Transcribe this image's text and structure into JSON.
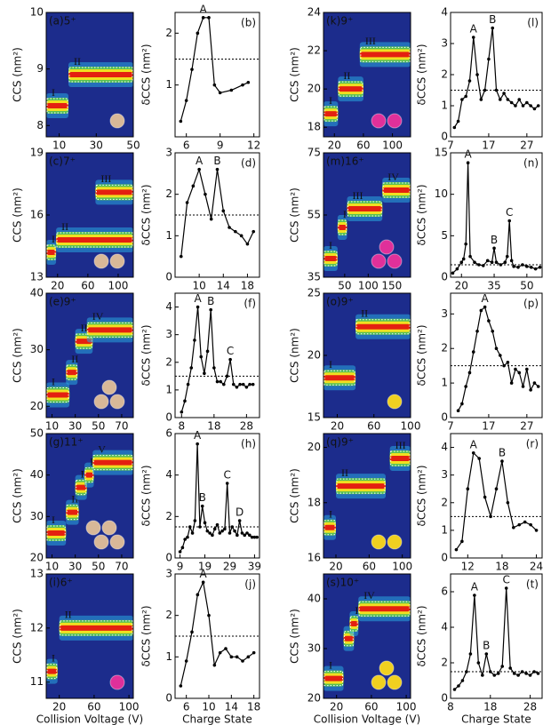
{
  "chart_data": [
    {
      "type": "ciu",
      "title": "(a)5⁺",
      "label_color": "#ffffff",
      "ylabel": "CCS (nm²)",
      "xlim": [
        3,
        50
      ],
      "xticks": [
        10,
        30,
        50
      ],
      "ylim": [
        7.8,
        10
      ],
      "yticks": [
        8,
        9,
        10
      ],
      "features": [
        {
          "label": "I",
          "x": [
            3,
            15
          ],
          "y": 8.35
        },
        {
          "label": "II",
          "x": [
            15,
            50
          ],
          "y": 8.9
        }
      ],
      "icon": {
        "color": "#d8b898",
        "count": 1
      }
    },
    {
      "type": "line",
      "title": "(b)",
      "ylabel": "δCCS (nm²)",
      "xlim": [
        5,
        12.5
      ],
      "xticks": [
        6,
        9,
        12
      ],
      "ylim": [
        0,
        2.4
      ],
      "yticks": [
        1,
        2
      ],
      "threshold": 1.5,
      "x": [
        5.5,
        6,
        6.5,
        7,
        7.5,
        8,
        8.5,
        9,
        10,
        11,
        11.5
      ],
      "values": [
        0.3,
        0.7,
        1.3,
        2.0,
        2.3,
        2.3,
        1.0,
        0.85,
        0.9,
        1.0,
        1.05
      ],
      "annotations": [
        {
          "text": "A",
          "x": 7.5
        }
      ]
    },
    {
      "type": "ciu",
      "title": "(c)7⁺",
      "label_color": "#ffffff",
      "ylabel": "CCS (nm²)",
      "xlim": [
        5,
        120
      ],
      "xticks": [
        20,
        60,
        100
      ],
      "ylim": [
        13,
        19
      ],
      "yticks": [
        13,
        16,
        19
      ],
      "features": [
        {
          "label": "I",
          "x": [
            5,
            18
          ],
          "y": 14.2
        },
        {
          "label": "II",
          "x": [
            18,
            120
          ],
          "y": 14.8
        },
        {
          "label": "III",
          "x": [
            70,
            120
          ],
          "y": 17.1
        }
      ],
      "icon": {
        "color": "#d8b898",
        "count": 2
      }
    },
    {
      "type": "line",
      "title": "(d)",
      "ylabel": "δCCS (nm²)",
      "xlim": [
        6,
        20
      ],
      "xticks": [
        10,
        14,
        18
      ],
      "ylim": [
        0,
        3
      ],
      "yticks": [
        0,
        1,
        2,
        3
      ],
      "threshold": 1.5,
      "x": [
        7,
        8,
        9,
        10,
        11,
        12,
        13,
        14,
        15,
        16,
        17,
        18,
        19
      ],
      "values": [
        0.5,
        1.8,
        2.2,
        2.6,
        2.0,
        1.4,
        2.6,
        1.6,
        1.2,
        1.1,
        1.0,
        0.8,
        1.1
      ],
      "annotations": [
        {
          "text": "A",
          "x": 10
        },
        {
          "text": "B",
          "x": 13
        }
      ]
    },
    {
      "type": "ciu",
      "title": "(e)9⁺",
      "label_color": "#ffffff",
      "ylabel": "CCS (nm²)",
      "xlim": [
        5,
        80
      ],
      "xticks": [
        10,
        30,
        50,
        70
      ],
      "ylim": [
        18,
        40
      ],
      "yticks": [
        20,
        30,
        40
      ],
      "features": [
        {
          "label": "I",
          "x": [
            5,
            25
          ],
          "y": 22
        },
        {
          "label": "II",
          "x": [
            22,
            32
          ],
          "y": 26
        },
        {
          "label": "III",
          "x": [
            30,
            45
          ],
          "y": 31.5
        },
        {
          "label": "IV",
          "x": [
            40,
            80
          ],
          "y": 33.5
        }
      ],
      "icon": {
        "color": "#d8b898",
        "count": 3
      }
    },
    {
      "type": "line",
      "title": "(f)",
      "ylabel": "δCCS (nm²)",
      "xlim": [
        6,
        32
      ],
      "xticks": [
        8,
        18,
        28
      ],
      "ylim": [
        0,
        4.5
      ],
      "yticks": [
        0,
        1,
        2,
        3,
        4
      ],
      "threshold": 1.5,
      "x": [
        8,
        9,
        10,
        11,
        12,
        13,
        14,
        15,
        16,
        17,
        18,
        19,
        20,
        21,
        22,
        23,
        24,
        25,
        26,
        27,
        28,
        29,
        30
      ],
      "values": [
        0.2,
        0.6,
        1.2,
        1.8,
        2.8,
        4.0,
        2.2,
        1.6,
        2.4,
        3.9,
        1.8,
        1.3,
        1.3,
        1.2,
        1.5,
        2.1,
        1.2,
        1.1,
        1.2,
        1.2,
        1.1,
        1.2,
        1.2
      ],
      "annotations": [
        {
          "text": "A",
          "x": 13
        },
        {
          "text": "B",
          "x": 17
        },
        {
          "text": "C",
          "x": 23
        }
      ]
    },
    {
      "type": "ciu",
      "title": "(g)11⁺",
      "label_color": "#ffffff",
      "ylabel": "CCS (nm²)",
      "xlim": [
        5,
        80
      ],
      "xticks": [
        10,
        30,
        50,
        70
      ],
      "ylim": [
        20,
        50
      ],
      "yticks": [
        20,
        30,
        40,
        50
      ],
      "features": [
        {
          "label": "I",
          "x": [
            5,
            22
          ],
          "y": 26
        },
        {
          "label": "II",
          "x": [
            22,
            33
          ],
          "y": 31
        },
        {
          "label": "III",
          "x": [
            30,
            40
          ],
          "y": 37
        },
        {
          "label": "IV",
          "x": [
            38,
            46
          ],
          "y": 40
        },
        {
          "label": "V",
          "x": [
            45,
            80
          ],
          "y": 43
        }
      ],
      "icon": {
        "color": "#d8b898",
        "count": 4
      }
    },
    {
      "type": "line",
      "title": "(h)",
      "ylabel": "δCCS (nm²)",
      "xlim": [
        7,
        41
      ],
      "xticks": [
        9,
        19,
        29,
        39
      ],
      "ylim": [
        0,
        6
      ],
      "yticks": [
        0,
        2,
        4,
        6
      ],
      "threshold": 1.5,
      "x": [
        9,
        10,
        11,
        12,
        13,
        14,
        15,
        16,
        17,
        18,
        19,
        20,
        21,
        22,
        23,
        24,
        25,
        26,
        27,
        28,
        29,
        30,
        31,
        32,
        33,
        34,
        35,
        36,
        37,
        38,
        39,
        40
      ],
      "values": [
        0.3,
        0.5,
        0.9,
        1.0,
        1.5,
        1.2,
        1.8,
        5.5,
        1.5,
        2.5,
        1.7,
        1.3,
        1.2,
        1.1,
        1.4,
        1.6,
        1.2,
        1.3,
        1.4,
        3.6,
        1.2,
        1.5,
        1.3,
        1.1,
        1.8,
        1.2,
        1.1,
        1.2,
        1.1,
        1.0,
        1.0,
        1.0
      ],
      "annotations": [
        {
          "text": "A",
          "x": 16
        },
        {
          "text": "B",
          "x": 18
        },
        {
          "text": "C",
          "x": 28
        },
        {
          "text": "D",
          "x": 33
        }
      ]
    },
    {
      "type": "ciu",
      "title": "(i)6⁺",
      "label_color": "#e0309a",
      "ylabel": "CCS (nm²)",
      "xlabel": "Collision Voltage (V)",
      "xlim": [
        5,
        105
      ],
      "xticks": [
        20,
        60,
        100
      ],
      "ylim": [
        10.7,
        13
      ],
      "yticks": [
        11,
        12,
        13
      ],
      "features": [
        {
          "label": "I",
          "x": [
            5,
            18
          ],
          "y": 11.2
        },
        {
          "label": "II",
          "x": [
            20,
            105
          ],
          "y": 12
        }
      ],
      "icon": {
        "color": "#e0309a",
        "count": 1
      }
    },
    {
      "type": "line",
      "title": "(j)",
      "ylabel": "δCCS (nm²)",
      "xlabel": "Charge State",
      "xlim": [
        4,
        19
      ],
      "xticks": [
        6,
        10,
        14,
        18
      ],
      "ylim": [
        0,
        3
      ],
      "yticks": [
        0,
        1,
        2,
        3
      ],
      "threshold": 1.5,
      "x": [
        5,
        6,
        7,
        8,
        9,
        10,
        11,
        12,
        13,
        14,
        15,
        16,
        17,
        18
      ],
      "values": [
        0.3,
        0.9,
        1.6,
        2.5,
        2.8,
        2.0,
        0.8,
        1.1,
        1.2,
        1.0,
        1.0,
        0.9,
        1.0,
        1.1
      ],
      "annotations": [
        {
          "text": "A",
          "x": 9
        }
      ]
    },
    {
      "type": "ciu",
      "title": "(k)9⁺",
      "label_color": "#e0309a",
      "ylabel": "CCS (nm²)",
      "xlim": [
        5,
        125
      ],
      "xticks": [
        20,
        60,
        100
      ],
      "ylim": [
        17.5,
        24
      ],
      "yticks": [
        18,
        20,
        22,
        24
      ],
      "features": [
        {
          "label": "I",
          "x": [
            5,
            25
          ],
          "y": 18.7
        },
        {
          "label": "II",
          "x": [
            25,
            60
          ],
          "y": 20
        },
        {
          "label": "III",
          "x": [
            55,
            125
          ],
          "y": 21.8
        }
      ],
      "icon": {
        "color": "#e0309a",
        "count": 2
      }
    },
    {
      "type": "line",
      "title": "(l)",
      "ylabel": "δCCS (nm²)",
      "xlim": [
        7,
        31
      ],
      "xticks": [
        7,
        17,
        27
      ],
      "ylim": [
        0,
        4
      ],
      "yticks": [
        0,
        1,
        2,
        3,
        4
      ],
      "threshold": 1.5,
      "x": [
        8,
        9,
        10,
        11,
        12,
        13,
        14,
        15,
        16,
        17,
        18,
        19,
        20,
        21,
        22,
        23,
        24,
        25,
        26,
        27,
        28,
        29,
        30
      ],
      "values": [
        0.3,
        0.5,
        1.2,
        1.3,
        1.8,
        3.2,
        2.0,
        1.2,
        1.5,
        2.5,
        3.5,
        1.5,
        1.2,
        1.4,
        1.2,
        1.1,
        1.0,
        1.2,
        1.0,
        1.1,
        1.0,
        0.9,
        1.0
      ],
      "annotations": [
        {
          "text": "A",
          "x": 13
        },
        {
          "text": "B",
          "x": 18
        }
      ]
    },
    {
      "type": "ciu",
      "title": "(m)16⁺",
      "label_color": "#e0309a",
      "ylabel": "CCS (nm²)",
      "xlim": [
        5,
        190
      ],
      "xticks": [
        50,
        100,
        150
      ],
      "ylim": [
        35,
        75
      ],
      "yticks": [
        35,
        55,
        75
      ],
      "features": [
        {
          "label": "I",
          "x": [
            5,
            35
          ],
          "y": 41
        },
        {
          "label": "II",
          "x": [
            35,
            55
          ],
          "y": 51
        },
        {
          "label": "III",
          "x": [
            55,
            130
          ],
          "y": 57
        },
        {
          "label": "IV",
          "x": [
            130,
            190
          ],
          "y": 63
        }
      ],
      "icon": {
        "color": "#e0309a",
        "count": 3
      }
    },
    {
      "type": "line",
      "title": "(n)",
      "ylabel": "δCCS (nm²)",
      "xlim": [
        15,
        57
      ],
      "xticks": [
        20,
        35,
        50
      ],
      "ylim": [
        0,
        15
      ],
      "yticks": [
        0,
        5,
        10,
        15
      ],
      "threshold": 1.5,
      "x": [
        16,
        18,
        20,
        21,
        22,
        23,
        24,
        26,
        28,
        30,
        32,
        34,
        35,
        36,
        38,
        40,
        41,
        42,
        43,
        44,
        46,
        48,
        50,
        52,
        54,
        56
      ],
      "values": [
        0.5,
        1.0,
        1.8,
        2.2,
        4.0,
        13.8,
        2.5,
        1.8,
        1.5,
        1.4,
        2.0,
        1.8,
        3.5,
        1.8,
        1.5,
        1.8,
        2.5,
        6.8,
        2.0,
        1.3,
        1.2,
        1.5,
        1.3,
        1.2,
        1.0,
        1.2
      ],
      "annotations": [
        {
          "text": "A",
          "x": 23
        },
        {
          "text": "B",
          "x": 35
        },
        {
          "text": "C",
          "x": 42
        }
      ]
    },
    {
      "type": "ciu",
      "title": "(o)9⁺",
      "label_color": "#f0d020",
      "ylabel": "CCS (nm²)",
      "xlim": [
        5,
        100
      ],
      "xticks": [
        20,
        60,
        100
      ],
      "ylim": [
        15,
        25
      ],
      "yticks": [
        15,
        20,
        25
      ],
      "features": [
        {
          "label": "I",
          "x": [
            5,
            40
          ],
          "y": 18.2
        },
        {
          "label": "II",
          "x": [
            40,
            100
          ],
          "y": 22.3
        }
      ],
      "icon": {
        "color": "#f0d020",
        "count": 1
      }
    },
    {
      "type": "line",
      "title": "(p)",
      "ylabel": "δCCS (nm²)",
      "xlim": [
        7,
        31
      ],
      "xticks": [
        7,
        17,
        27
      ],
      "ylim": [
        0,
        3.6
      ],
      "yticks": [
        0,
        1,
        2,
        3
      ],
      "threshold": 1.5,
      "x": [
        9,
        10,
        11,
        12,
        13,
        14,
        15,
        16,
        17,
        18,
        19,
        20,
        21,
        22,
        23,
        24,
        25,
        26,
        27,
        28,
        29,
        30
      ],
      "values": [
        0.2,
        0.4,
        0.9,
        1.3,
        1.9,
        2.5,
        3.1,
        3.2,
        2.8,
        2.5,
        2.0,
        1.8,
        1.5,
        1.6,
        1.0,
        1.4,
        1.3,
        0.9,
        1.4,
        0.8,
        1.0,
        0.9
      ],
      "annotations": [
        {
          "text": "A",
          "x": 16
        }
      ]
    },
    {
      "type": "ciu",
      "title": "(q)9⁺",
      "label_color": "#f0d020",
      "ylabel": "CCS (nm²)",
      "xlim": [
        5,
        110
      ],
      "xticks": [
        20,
        60,
        100
      ],
      "ylim": [
        16,
        20.5
      ],
      "yticks": [
        16,
        18,
        20
      ],
      "features": [
        {
          "label": "I",
          "x": [
            5,
            20
          ],
          "y": 17.1
        },
        {
          "label": "II",
          "x": [
            20,
            80
          ],
          "y": 18.6
        },
        {
          "label": "III",
          "x": [
            85,
            110
          ],
          "y": 19.6
        }
      ],
      "icon": {
        "color": "#f0d020",
        "count": 2
      }
    },
    {
      "type": "line",
      "title": "(r)",
      "ylabel": "δCCS (nm²)",
      "xlim": [
        9,
        25
      ],
      "xticks": [
        12,
        18,
        24
      ],
      "ylim": [
        0,
        4.5
      ],
      "yticks": [
        0,
        1,
        2,
        3,
        4
      ],
      "threshold": 1.5,
      "x": [
        10,
        11,
        12,
        13,
        14,
        15,
        16,
        17,
        18,
        19,
        20,
        21,
        22,
        23,
        24
      ],
      "values": [
        0.3,
        0.6,
        2.5,
        3.8,
        3.6,
        2.2,
        1.5,
        2.5,
        3.5,
        2.0,
        1.1,
        1.2,
        1.3,
        1.2,
        1.0
      ],
      "annotations": [
        {
          "text": "A",
          "x": 13
        },
        {
          "text": "B",
          "x": 18
        }
      ]
    },
    {
      "type": "ciu",
      "title": "(s)10⁺",
      "label_color": "#f0d020",
      "ylabel": "CCS (nm²)",
      "xlabel": "Collision Voltage (V)",
      "xlim": [
        5,
        105
      ],
      "xticks": [
        20,
        60,
        100
      ],
      "ylim": [
        20,
        45
      ],
      "yticks": [
        20,
        30,
        40
      ],
      "features": [
        {
          "label": "I",
          "x": [
            5,
            28
          ],
          "y": 24
        },
        {
          "label": "II",
          "x": [
            28,
            40
          ],
          "y": 32
        },
        {
          "label": "III",
          "x": [
            35,
            45
          ],
          "y": 35
        },
        {
          "label": "IV",
          "x": [
            45,
            105
          ],
          "y": 38
        }
      ],
      "icon": {
        "color": "#f0d020",
        "count": 3
      }
    },
    {
      "type": "line",
      "title": "(t)",
      "ylabel": "δCCS (nm²)",
      "xlabel": "Charge State",
      "xlim": [
        8,
        31
      ],
      "xticks": [
        8,
        18,
        28
      ],
      "ylim": [
        0,
        7
      ],
      "yticks": [
        0,
        2,
        4,
        6
      ],
      "threshold": 1.5,
      "x": [
        9,
        10,
        11,
        12,
        13,
        14,
        15,
        16,
        17,
        18,
        19,
        20,
        21,
        22,
        23,
        24,
        25,
        26,
        27,
        28,
        29,
        30
      ],
      "values": [
        0.5,
        0.7,
        1.0,
        1.5,
        2.5,
        5.8,
        2.0,
        1.3,
        2.5,
        1.5,
        1.3,
        1.4,
        1.8,
        6.2,
        1.7,
        1.4,
        1.3,
        1.5,
        1.4,
        1.3,
        1.5,
        1.4
      ],
      "annotations": [
        {
          "text": "A",
          "x": 14
        },
        {
          "text": "B",
          "x": 17
        },
        {
          "text": "C",
          "x": 22
        }
      ]
    }
  ]
}
